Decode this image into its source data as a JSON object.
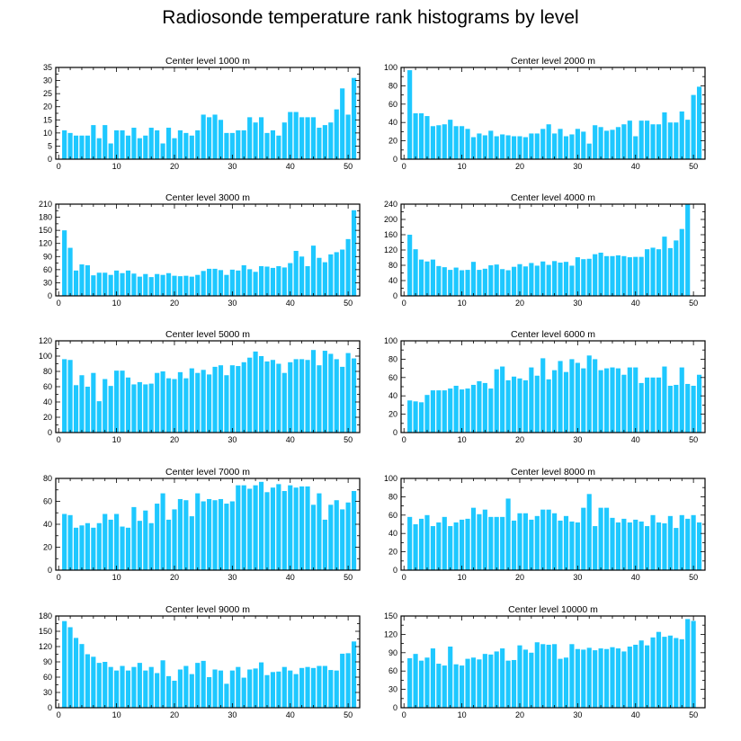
{
  "title": "Radiosonde temperature rank histograms by level",
  "colors": {
    "bar": "#1ec8ff",
    "axis": "#000000",
    "background": "#ffffff"
  },
  "chart_data": [
    {
      "type": "bar",
      "title": "Center level 1000 m",
      "xlim": [
        -0.5,
        52
      ],
      "ylim": [
        0,
        35
      ],
      "xticks": [
        0,
        10,
        20,
        30,
        40,
        50
      ],
      "yticks": [
        0,
        5,
        10,
        15,
        20,
        25,
        30,
        35
      ],
      "x": [
        1,
        2,
        3,
        4,
        5,
        6,
        7,
        8,
        9,
        10,
        11,
        12,
        13,
        14,
        15,
        16,
        17,
        18,
        19,
        20,
        21,
        22,
        23,
        24,
        25,
        26,
        27,
        28,
        29,
        30,
        31,
        32,
        33,
        34,
        35,
        36,
        37,
        38,
        39,
        40,
        41,
        42,
        43,
        44,
        45,
        46,
        47,
        48,
        49,
        50,
        51
      ],
      "values": [
        11,
        10,
        9,
        9,
        9,
        13,
        8,
        13,
        6,
        11,
        11,
        9,
        12,
        8,
        9,
        12,
        11,
        6,
        12,
        8,
        11,
        10,
        9,
        11,
        17,
        16,
        17,
        15,
        10,
        10,
        11,
        11,
        16,
        14,
        16,
        10,
        11,
        9,
        14,
        18,
        18,
        16,
        16,
        16,
        12,
        13,
        14,
        19,
        27,
        17,
        31
      ]
    },
    {
      "type": "bar",
      "title": "Center level 2000 m",
      "xlim": [
        -0.5,
        52
      ],
      "ylim": [
        0,
        100
      ],
      "xticks": [
        0,
        10,
        20,
        30,
        40,
        50
      ],
      "yticks": [
        0,
        20,
        40,
        60,
        80,
        100
      ],
      "x": [
        1,
        2,
        3,
        4,
        5,
        6,
        7,
        8,
        9,
        10,
        11,
        12,
        13,
        14,
        15,
        16,
        17,
        18,
        19,
        20,
        21,
        22,
        23,
        24,
        25,
        26,
        27,
        28,
        29,
        30,
        31,
        32,
        33,
        34,
        35,
        36,
        37,
        38,
        39,
        40,
        41,
        42,
        43,
        44,
        45,
        46,
        47,
        48,
        49,
        50,
        51
      ],
      "values": [
        97,
        50,
        50,
        47,
        36,
        37,
        38,
        43,
        36,
        36,
        33,
        24,
        28,
        26,
        31,
        25,
        27,
        26,
        25,
        25,
        24,
        28,
        28,
        33,
        38,
        28,
        33,
        25,
        27,
        33,
        30,
        17,
        37,
        35,
        31,
        32,
        35,
        38,
        42,
        25,
        42,
        42,
        38,
        38,
        51,
        40,
        40,
        52,
        43,
        70,
        79
      ]
    },
    {
      "type": "bar",
      "title": "Center level 3000 m",
      "xlim": [
        -0.5,
        52
      ],
      "ylim": [
        0,
        210
      ],
      "xticks": [
        0,
        10,
        20,
        30,
        40,
        50
      ],
      "yticks": [
        0,
        30,
        60,
        90,
        120,
        150,
        180,
        210
      ],
      "x": [
        1,
        2,
        3,
        4,
        5,
        6,
        7,
        8,
        9,
        10,
        11,
        12,
        13,
        14,
        15,
        16,
        17,
        18,
        19,
        20,
        21,
        22,
        23,
        24,
        25,
        26,
        27,
        28,
        29,
        30,
        31,
        32,
        33,
        34,
        35,
        36,
        37,
        38,
        39,
        40,
        41,
        42,
        43,
        44,
        45,
        46,
        47,
        48,
        49,
        50,
        51
      ],
      "values": [
        150,
        110,
        58,
        72,
        70,
        47,
        53,
        53,
        48,
        58,
        52,
        58,
        51,
        44,
        50,
        43,
        50,
        48,
        52,
        46,
        45,
        46,
        44,
        48,
        57,
        62,
        62,
        59,
        48,
        60,
        58,
        70,
        61,
        55,
        68,
        67,
        64,
        68,
        65,
        75,
        103,
        90,
        68,
        115,
        87,
        77,
        95,
        100,
        106,
        130,
        196
      ]
    },
    {
      "type": "bar",
      "title": "Center level 4000 m",
      "xlim": [
        -0.5,
        52
      ],
      "ylim": [
        0,
        240
      ],
      "xticks": [
        0,
        10,
        20,
        30,
        40,
        50
      ],
      "yticks": [
        0,
        40,
        80,
        120,
        160,
        200,
        240
      ],
      "x": [
        1,
        2,
        3,
        4,
        5,
        6,
        7,
        8,
        9,
        10,
        11,
        12,
        13,
        14,
        15,
        16,
        17,
        18,
        19,
        20,
        21,
        22,
        23,
        24,
        25,
        26,
        27,
        28,
        29,
        30,
        31,
        32,
        33,
        34,
        35,
        36,
        37,
        38,
        39,
        40,
        41,
        42,
        43,
        44,
        45,
        46,
        47,
        48,
        49,
        50,
        51
      ],
      "values": [
        160,
        122,
        95,
        90,
        95,
        78,
        75,
        68,
        74,
        67,
        68,
        89,
        68,
        71,
        80,
        82,
        70,
        67,
        76,
        83,
        77,
        86,
        79,
        90,
        81,
        91,
        87,
        89,
        79,
        101,
        96,
        97,
        109,
        113,
        104,
        104,
        106,
        104,
        101,
        102,
        102,
        122,
        126,
        122,
        155,
        125,
        145,
        175,
        240,
        0,
        0
      ]
    },
    {
      "type": "bar",
      "title": "Center level 5000 m",
      "xlim": [
        -0.5,
        52
      ],
      "ylim": [
        0,
        120
      ],
      "xticks": [
        0,
        10,
        20,
        30,
        40,
        50
      ],
      "yticks": [
        0,
        20,
        40,
        60,
        80,
        100,
        120
      ],
      "x": [
        1,
        2,
        3,
        4,
        5,
        6,
        7,
        8,
        9,
        10,
        11,
        12,
        13,
        14,
        15,
        16,
        17,
        18,
        19,
        20,
        21,
        22,
        23,
        24,
        25,
        26,
        27,
        28,
        29,
        30,
        31,
        32,
        33,
        34,
        35,
        36,
        37,
        38,
        39,
        40,
        41,
        42,
        43,
        44,
        45,
        46,
        47,
        48,
        49,
        50,
        51
      ],
      "values": [
        96,
        95,
        62,
        75,
        60,
        78,
        41,
        70,
        61,
        81,
        81,
        72,
        63,
        66,
        63,
        64,
        78,
        80,
        71,
        70,
        79,
        71,
        84,
        78,
        82,
        76,
        86,
        88,
        75,
        88,
        87,
        92,
        98,
        106,
        100,
        93,
        95,
        90,
        78,
        92,
        96,
        96,
        95,
        108,
        88,
        107,
        103,
        96,
        86,
        104,
        97
      ]
    },
    {
      "type": "bar",
      "title": "Center level 6000 m",
      "xlim": [
        -0.5,
        52
      ],
      "ylim": [
        0,
        100
      ],
      "xticks": [
        0,
        10,
        20,
        30,
        40,
        50
      ],
      "yticks": [
        0,
        20,
        40,
        60,
        80,
        100
      ],
      "x": [
        1,
        2,
        3,
        4,
        5,
        6,
        7,
        8,
        9,
        10,
        11,
        12,
        13,
        14,
        15,
        16,
        17,
        18,
        19,
        20,
        21,
        22,
        23,
        24,
        25,
        26,
        27,
        28,
        29,
        30,
        31,
        32,
        33,
        34,
        35,
        36,
        37,
        38,
        39,
        40,
        41,
        42,
        43,
        44,
        45,
        46,
        47,
        48,
        49,
        50,
        51
      ],
      "values": [
        35,
        34,
        33,
        41,
        46,
        46,
        46,
        48,
        51,
        47,
        48,
        52,
        56,
        54,
        48,
        69,
        72,
        57,
        61,
        59,
        57,
        71,
        62,
        81,
        58,
        68,
        78,
        66,
        80,
        76,
        70,
        84,
        80,
        68,
        70,
        71,
        70,
        63,
        71,
        71,
        54,
        60,
        60,
        60,
        72,
        51,
        52,
        71,
        53,
        51,
        63
      ]
    },
    {
      "type": "bar",
      "title": "Center level 7000 m",
      "xlim": [
        -0.5,
        52
      ],
      "ylim": [
        0,
        80
      ],
      "xticks": [
        0,
        10,
        20,
        30,
        40,
        50
      ],
      "yticks": [
        0,
        20,
        40,
        60,
        80
      ],
      "x": [
        1,
        2,
        3,
        4,
        5,
        6,
        7,
        8,
        9,
        10,
        11,
        12,
        13,
        14,
        15,
        16,
        17,
        18,
        19,
        20,
        21,
        22,
        23,
        24,
        25,
        26,
        27,
        28,
        29,
        30,
        31,
        32,
        33,
        34,
        35,
        36,
        37,
        38,
        39,
        40,
        41,
        42,
        43,
        44,
        45,
        46,
        47,
        48,
        49,
        50,
        51
      ],
      "values": [
        49,
        48,
        37,
        39,
        41,
        37,
        41,
        49,
        44,
        49,
        38,
        37,
        55,
        43,
        52,
        41,
        58,
        67,
        44,
        53,
        62,
        61,
        47,
        67,
        60,
        62,
        61,
        62,
        58,
        60,
        74,
        74,
        71,
        74,
        77,
        68,
        72,
        75,
        69,
        74,
        72,
        73,
        73,
        57,
        67,
        44,
        57,
        61,
        53,
        59,
        69
      ]
    },
    {
      "type": "bar",
      "title": "Center level 8000 m",
      "xlim": [
        -0.5,
        52
      ],
      "ylim": [
        0,
        100
      ],
      "xticks": [
        0,
        10,
        20,
        30,
        40,
        50
      ],
      "yticks": [
        0,
        20,
        40,
        60,
        80,
        100
      ],
      "x": [
        1,
        2,
        3,
        4,
        5,
        6,
        7,
        8,
        9,
        10,
        11,
        12,
        13,
        14,
        15,
        16,
        17,
        18,
        19,
        20,
        21,
        22,
        23,
        24,
        25,
        26,
        27,
        28,
        29,
        30,
        31,
        32,
        33,
        34,
        35,
        36,
        37,
        38,
        39,
        40,
        41,
        42,
        43,
        44,
        45,
        46,
        47,
        48,
        49,
        50,
        51
      ],
      "values": [
        58,
        50,
        56,
        60,
        48,
        52,
        58,
        48,
        52,
        55,
        56,
        68,
        61,
        66,
        58,
        58,
        58,
        78,
        54,
        62,
        62,
        55,
        59,
        66,
        66,
        62,
        54,
        59,
        53,
        52,
        68,
        83,
        48,
        68,
        68,
        57,
        52,
        56,
        52,
        55,
        53,
        48,
        60,
        52,
        51,
        59,
        46,
        60,
        56,
        60,
        52
      ]
    },
    {
      "type": "bar",
      "title": "Center level 9000 m",
      "xlim": [
        -0.5,
        52
      ],
      "ylim": [
        0,
        180
      ],
      "xticks": [
        0,
        10,
        20,
        30,
        40,
        50
      ],
      "yticks": [
        0,
        30,
        60,
        90,
        120,
        150,
        180
      ],
      "x": [
        1,
        2,
        3,
        4,
        5,
        6,
        7,
        8,
        9,
        10,
        11,
        12,
        13,
        14,
        15,
        16,
        17,
        18,
        19,
        20,
        21,
        22,
        23,
        24,
        25,
        26,
        27,
        28,
        29,
        30,
        31,
        32,
        33,
        34,
        35,
        36,
        37,
        38,
        39,
        40,
        41,
        42,
        43,
        44,
        45,
        46,
        47,
        48,
        49,
        50,
        51
      ],
      "values": [
        170,
        158,
        137,
        125,
        105,
        100,
        88,
        90,
        80,
        73,
        82,
        73,
        80,
        88,
        73,
        80,
        68,
        93,
        62,
        53,
        75,
        82,
        66,
        88,
        92,
        60,
        75,
        73,
        47,
        73,
        80,
        59,
        75,
        77,
        89,
        64,
        70,
        71,
        80,
        73,
        66,
        78,
        80,
        78,
        82,
        82,
        74,
        73,
        106,
        107,
        130
      ]
    },
    {
      "type": "bar",
      "title": "Center level 10000 m",
      "xlim": [
        -0.5,
        52
      ],
      "ylim": [
        0,
        150
      ],
      "xticks": [
        0,
        10,
        20,
        30,
        40,
        50
      ],
      "yticks": [
        0,
        30,
        60,
        90,
        120,
        150
      ],
      "x": [
        1,
        2,
        3,
        4,
        5,
        6,
        7,
        8,
        9,
        10,
        11,
        12,
        13,
        14,
        15,
        16,
        17,
        18,
        19,
        20,
        21,
        22,
        23,
        24,
        25,
        26,
        27,
        28,
        29,
        30,
        31,
        32,
        33,
        34,
        35,
        36,
        37,
        38,
        39,
        40,
        41,
        42,
        43,
        44,
        45,
        46,
        47,
        48,
        49,
        50,
        51
      ],
      "values": [
        81,
        88,
        77,
        82,
        97,
        72,
        69,
        100,
        71,
        69,
        80,
        82,
        79,
        88,
        87,
        92,
        97,
        77,
        78,
        102,
        95,
        90,
        107,
        104,
        103,
        104,
        80,
        82,
        104,
        96,
        95,
        98,
        94,
        97,
        96,
        99,
        97,
        92,
        100,
        103,
        110,
        102,
        115,
        124,
        116,
        118,
        114,
        112,
        145,
        142,
        0
      ]
    }
  ]
}
